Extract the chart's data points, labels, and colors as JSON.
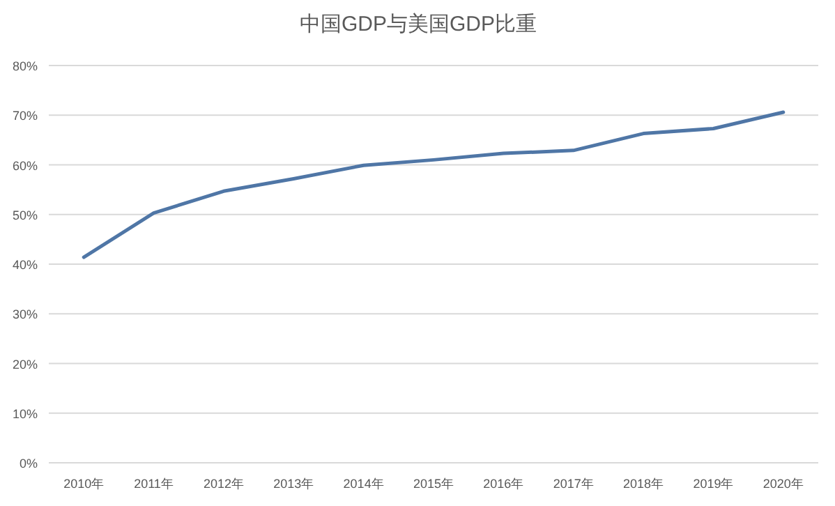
{
  "chart_data": {
    "type": "line",
    "title": "中国GDP与美国GDP比重",
    "categories": [
      "2010年",
      "2011年",
      "2012年",
      "2013年",
      "2014年",
      "2015年",
      "2016年",
      "2017年",
      "2018年",
      "2019年",
      "2020年"
    ],
    "series": [
      {
        "color": "#4f76a6",
        "values": [
          41.4,
          50.3,
          54.7,
          57.2,
          59.9,
          61.0,
          62.3,
          62.9,
          66.3,
          67.3,
          70.6
        ]
      }
    ],
    "ylim": [
      0,
      80
    ],
    "yticks": [
      {
        "value": 0,
        "label": "0%"
      },
      {
        "value": 10,
        "label": "10%"
      },
      {
        "value": 20,
        "label": "20%"
      },
      {
        "value": 30,
        "label": "30%"
      },
      {
        "value": 40,
        "label": "40%"
      },
      {
        "value": 50,
        "label": "50%"
      },
      {
        "value": 60,
        "label": "60%"
      },
      {
        "value": 70,
        "label": "70%"
      },
      {
        "value": 80,
        "label": "80%"
      }
    ],
    "grid": "y",
    "marker": "none",
    "line_style": "solid"
  }
}
